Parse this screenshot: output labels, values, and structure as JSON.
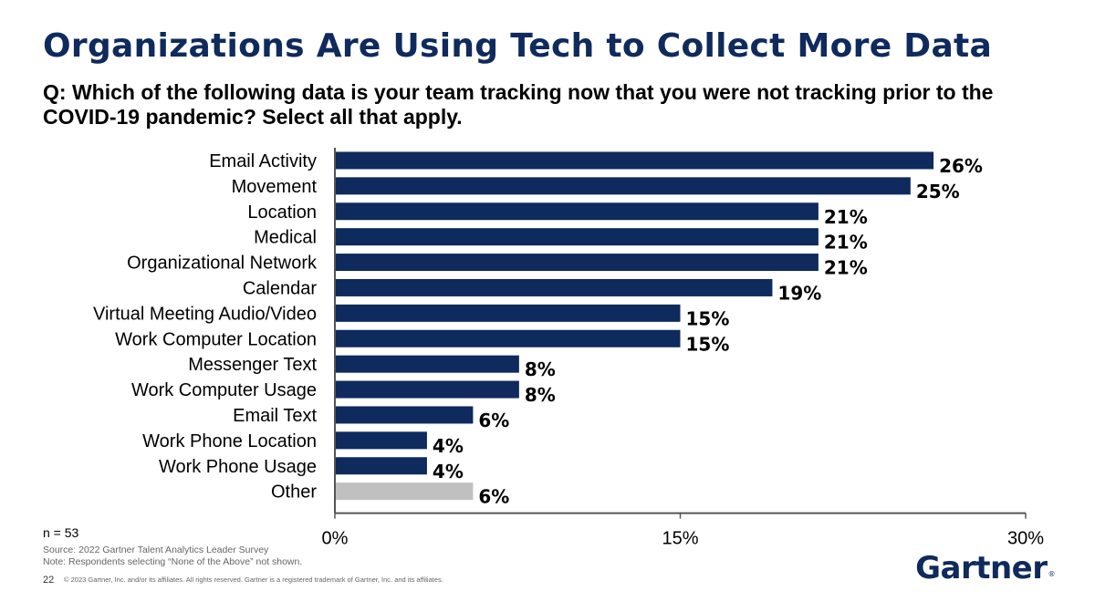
{
  "title": "Organizations Are Using Tech to Collect More Data",
  "question": "Q: Which of the following data is your team tracking now that you were not tracking prior to the COVID-19 pandemic? Select all that apply.",
  "footer": {
    "n": "n = 53",
    "source": "Source: 2022 Gartner Talent Analytics Leader Survey",
    "note": "Note: Respondents selecting “None of the Above” not shown.",
    "page": "22",
    "copyright": "© 2023 Gartner, Inc. and/or its affiliates. All rights reserved. Gartner is a registered trademark of Gartner, Inc. and its affiliates.",
    "brand": "Gartner",
    "brand_mark": "®"
  },
  "colors": {
    "bar": "#0f2a5c",
    "highlight_other": "#c0c0c0",
    "axis": "#555555",
    "title": "#0f2a5c"
  },
  "chart_data": {
    "type": "bar",
    "orientation": "horizontal",
    "categories": [
      "Email Activity",
      "Movement",
      "Location",
      "Medical",
      "Organizational Network",
      "Calendar",
      "Virtual Meeting Audio/Video",
      "Work Computer Location",
      "Messenger Text",
      "Work Computer Usage",
      "Email Text",
      "Work Phone Location",
      "Work Phone Usage",
      "Other"
    ],
    "values": [
      26,
      25,
      21,
      21,
      21,
      19,
      15,
      15,
      8,
      8,
      6,
      4,
      4,
      6
    ],
    "value_labels": [
      "26%",
      "25%",
      "21%",
      "21%",
      "21%",
      "19%",
      "15%",
      "15%",
      "8%",
      "8%",
      "6%",
      "4%",
      "4%",
      "6%"
    ],
    "xlim": [
      0,
      30
    ],
    "xticks": [
      0,
      15,
      30
    ],
    "xtick_labels": [
      "0%",
      "15%",
      "30%"
    ],
    "grid": false,
    "legend": "none"
  }
}
